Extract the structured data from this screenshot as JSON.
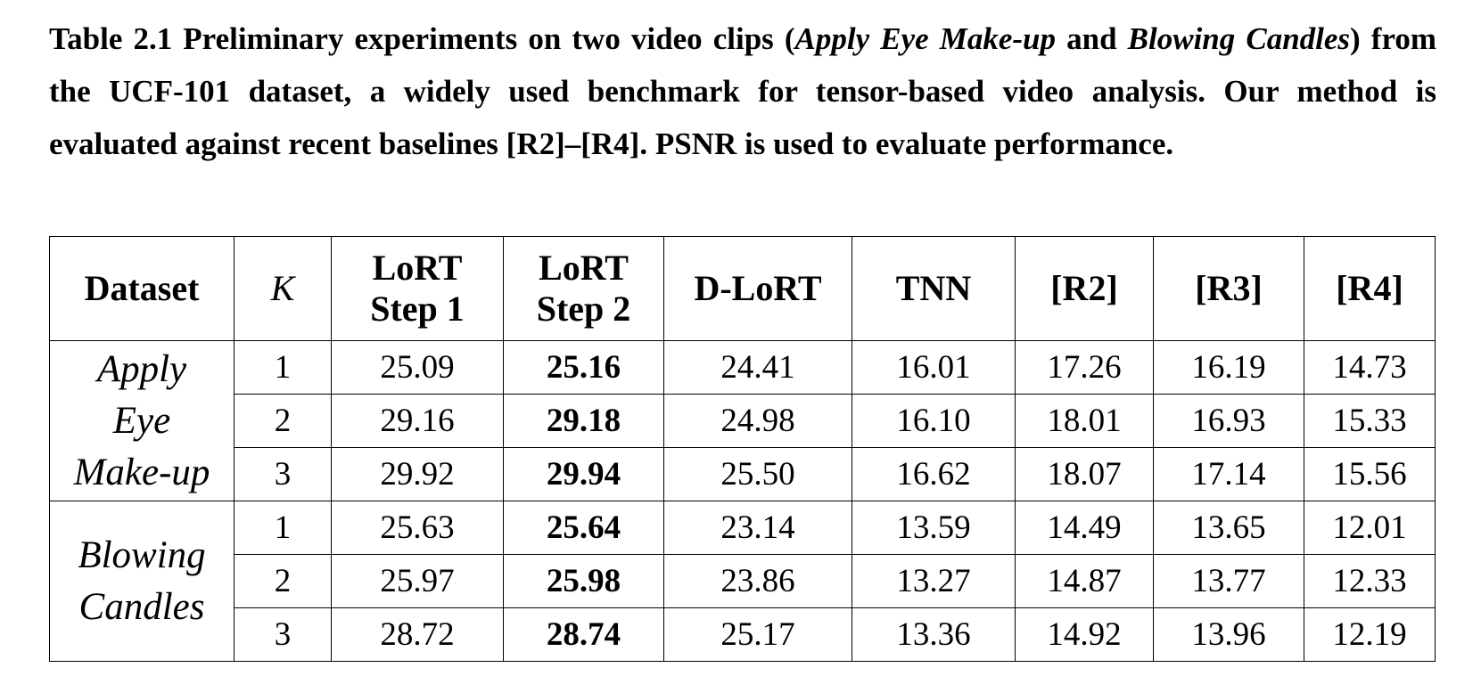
{
  "caption": {
    "part1": "Table 2.1 Preliminary experiments on two video clips (",
    "clip1": "Apply Eye Make-up",
    "part2": " and ",
    "clip2": "Blowing Candles",
    "part3": ") from the UCF-101 dataset, a widely used benchmark for tensor-based video analysis. Our method is evaluated against recent baselines [R2]–[R4]. PSNR is used to evaluate performance."
  },
  "table": {
    "headers": {
      "dataset": "Dataset",
      "k": "K",
      "lort_step1_line1": "LoRT",
      "lort_step1_line2": "Step 1",
      "lort_step2_line1": "LoRT",
      "lort_step2_line2": "Step 2",
      "dlort": "D-LoRT",
      "tnn": "TNN",
      "r2": "[R2]",
      "r3": "[R3]",
      "r4": "[R4]"
    },
    "groups": [
      {
        "name_lines": [
          "Apply",
          "Eye",
          "Make-up"
        ],
        "rows": [
          [
            "1",
            "25.09",
            "25.16",
            "24.41",
            "16.01",
            "17.26",
            "16.19",
            "14.73"
          ],
          [
            "2",
            "29.16",
            "29.18",
            "24.98",
            "16.10",
            "18.01",
            "16.93",
            "15.33"
          ],
          [
            "3",
            "29.92",
            "29.94",
            "25.50",
            "16.62",
            "18.07",
            "17.14",
            "15.56"
          ]
        ]
      },
      {
        "name_lines": [
          "Blowing",
          "Candles"
        ],
        "rows": [
          [
            "1",
            "25.63",
            "25.64",
            "23.14",
            "13.59",
            "14.49",
            "13.65",
            "12.01"
          ],
          [
            "2",
            "25.97",
            "25.98",
            "23.86",
            "13.27",
            "14.87",
            "13.77",
            "12.33"
          ],
          [
            "3",
            "28.72",
            "28.74",
            "25.17",
            "13.36",
            "14.92",
            "13.96",
            "12.19"
          ]
        ]
      }
    ]
  }
}
